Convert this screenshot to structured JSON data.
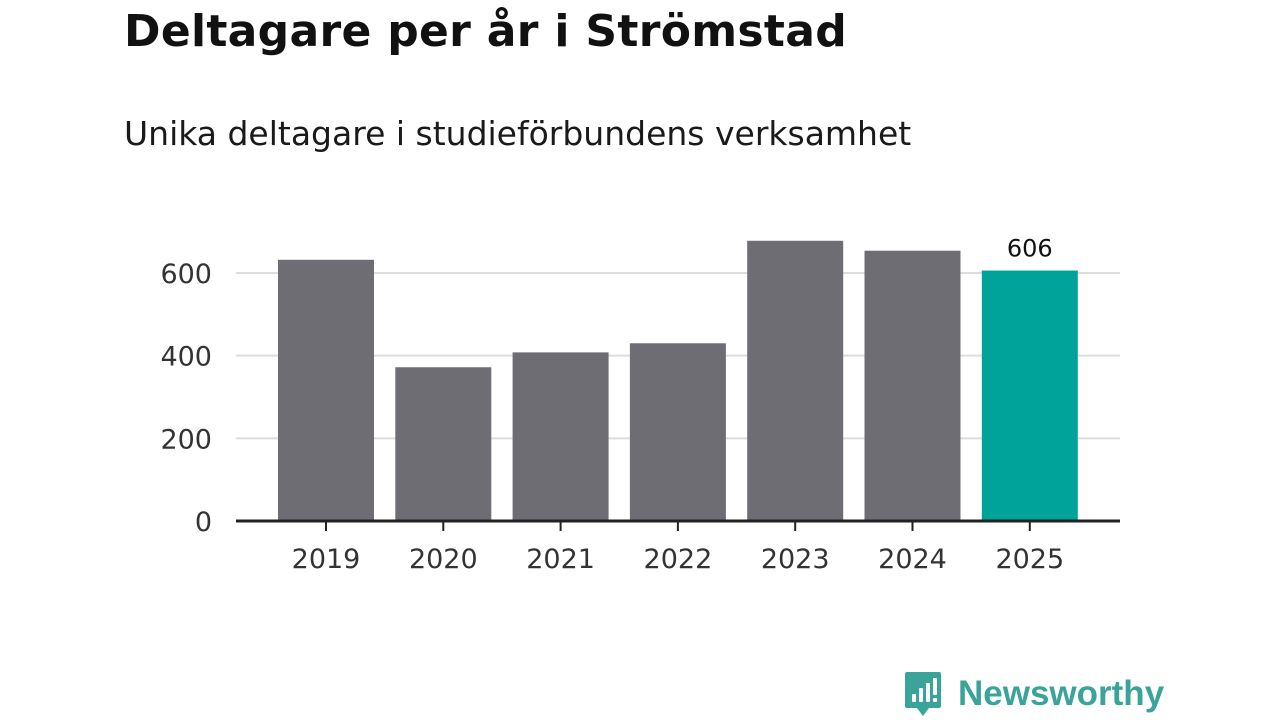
{
  "title": "Deltagare per år i Strömstad",
  "subtitle": "Unika deltagare i studieförbundens verksamhet",
  "brand": {
    "name": "Newsworthy",
    "icon": "newsworthy-logo-icon",
    "color": "#3aa39a"
  },
  "colors": {
    "bar": "#6e6d73",
    "highlight": "#00a39a",
    "grid": "#dddddd",
    "axis": "#222222"
  },
  "chart_data": {
    "type": "bar",
    "title": "Deltagare per år i Strömstad",
    "subtitle": "Unika deltagare i studieförbundens verksamhet",
    "xlabel": "",
    "ylabel": "",
    "categories": [
      "2019",
      "2020",
      "2021",
      "2022",
      "2023",
      "2024",
      "2025"
    ],
    "values": [
      632,
      372,
      408,
      430,
      678,
      654,
      606
    ],
    "highlight_index": 6,
    "data_labels": [
      {
        "index": 6,
        "text": "606"
      }
    ],
    "yticks": [
      0,
      200,
      400,
      600
    ],
    "ylim": [
      0,
      700
    ],
    "grid": true,
    "legend": "none"
  }
}
